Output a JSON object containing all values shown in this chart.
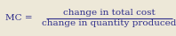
{
  "lhs_text": "MC = ",
  "numerator": "change in total cost",
  "denominator": "change in quantity produced",
  "text_color": "#2e2e8b",
  "bg_color": "#ede8d8",
  "line_color": "#2e2e8b",
  "fontsize": 7.5,
  "fig_width": 1.98,
  "fig_height": 0.41,
  "dpi": 100
}
